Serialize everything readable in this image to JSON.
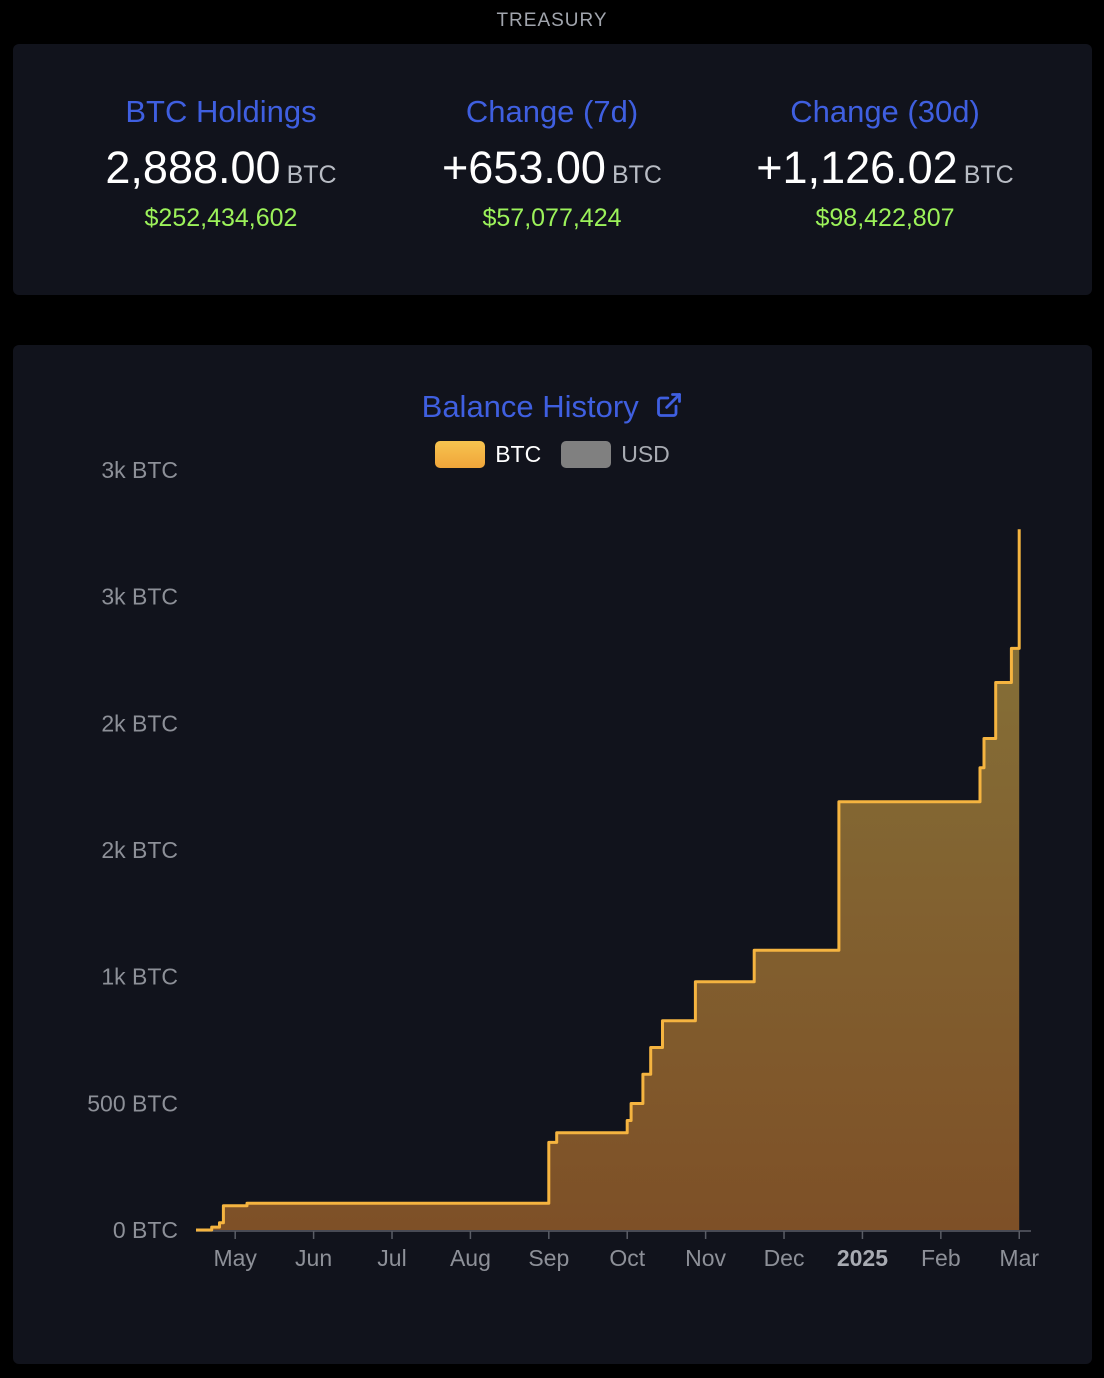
{
  "section_label": "TREASURY",
  "stats": [
    {
      "title": "BTC Holdings",
      "value": "2,888.00",
      "unit": "BTC",
      "usd": "$252,434,602"
    },
    {
      "title": "Change (7d)",
      "value": "+653.00",
      "unit": "BTC",
      "usd": "$57,077,424"
    },
    {
      "title": "Change (30d)",
      "value": "+1,126.02",
      "unit": "BTC",
      "usd": "$98,422,807"
    }
  ],
  "chart_title": "Balance History",
  "legend": [
    {
      "label": "BTC",
      "color": "#f5b942",
      "active": true
    },
    {
      "label": "USD",
      "color": "#808080",
      "active": false
    }
  ],
  "colors": {
    "line": "#f5b440",
    "area_top": "#86753a",
    "area_bottom": "#7e5027",
    "accent": "#3f5fe0",
    "usd_green": "#9cf25a"
  },
  "chart_data": {
    "type": "area",
    "y_tick_labels": [
      "0 BTC",
      "500 BTC",
      "1k BTC",
      "2k BTC",
      "2k BTC",
      "3k BTC",
      "3k BTC"
    ],
    "x_tick_labels": [
      "May",
      "Jun",
      "Jul",
      "Aug",
      "Sep",
      "Oct",
      "Nov",
      "Dec",
      "2025",
      "Feb",
      "Mar"
    ],
    "x_tick_months": [
      1,
      2,
      3,
      4,
      5,
      6,
      7,
      8,
      9,
      10,
      11
    ],
    "x_min_month": 0.5,
    "ylim": [
      0,
      3000
    ],
    "series": [
      {
        "name": "BTC",
        "step": true,
        "points": [
          [
            0.5,
            0
          ],
          [
            0.7,
            12
          ],
          [
            0.8,
            30
          ],
          [
            0.85,
            100
          ],
          [
            1.15,
            110
          ],
          [
            4.98,
            110
          ],
          [
            5.0,
            360
          ],
          [
            5.1,
            400
          ],
          [
            5.98,
            400
          ],
          [
            6.0,
            450
          ],
          [
            6.05,
            520
          ],
          [
            6.2,
            640
          ],
          [
            6.3,
            750
          ],
          [
            6.45,
            860
          ],
          [
            6.87,
            1020
          ],
          [
            7.62,
            1150
          ],
          [
            8.7,
            1760
          ],
          [
            10.5,
            1900
          ],
          [
            10.55,
            2020
          ],
          [
            10.7,
            2250
          ],
          [
            10.9,
            2390
          ],
          [
            11.0,
            2880
          ]
        ]
      }
    ]
  }
}
